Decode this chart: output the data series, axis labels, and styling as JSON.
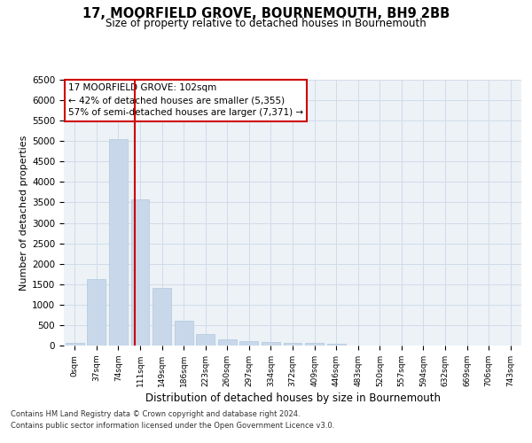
{
  "title": "17, MOORFIELD GROVE, BOURNEMOUTH, BH9 2BB",
  "subtitle": "Size of property relative to detached houses in Bournemouth",
  "xlabel": "Distribution of detached houses by size in Bournemouth",
  "ylabel": "Number of detached properties",
  "bar_color": "#c8d8ea",
  "bar_edge_color": "#b0c8dc",
  "categories": [
    "0sqm",
    "37sqm",
    "74sqm",
    "111sqm",
    "149sqm",
    "186sqm",
    "223sqm",
    "260sqm",
    "297sqm",
    "334sqm",
    "372sqm",
    "409sqm",
    "446sqm",
    "483sqm",
    "520sqm",
    "557sqm",
    "594sqm",
    "632sqm",
    "669sqm",
    "706sqm",
    "743sqm"
  ],
  "values": [
    70,
    1620,
    5050,
    3570,
    1410,
    610,
    290,
    155,
    110,
    80,
    60,
    55,
    50,
    0,
    0,
    0,
    0,
    0,
    0,
    0,
    0
  ],
  "ylim": [
    0,
    6500
  ],
  "yticks": [
    0,
    500,
    1000,
    1500,
    2000,
    2500,
    3000,
    3500,
    4000,
    4500,
    5000,
    5500,
    6000,
    6500
  ],
  "vline_color": "#cc0000",
  "annotation_text": "17 MOORFIELD GROVE: 102sqm\n← 42% of detached houses are smaller (5,355)\n57% of semi-detached houses are larger (7,371) →",
  "annotation_box_color": "#ffffff",
  "annotation_box_edge": "#cc0000",
  "footer_line1": "Contains HM Land Registry data © Crown copyright and database right 2024.",
  "footer_line2": "Contains public sector information licensed under the Open Government Licence v3.0.",
  "grid_color": "#d0dce8",
  "background_color": "#edf2f7"
}
